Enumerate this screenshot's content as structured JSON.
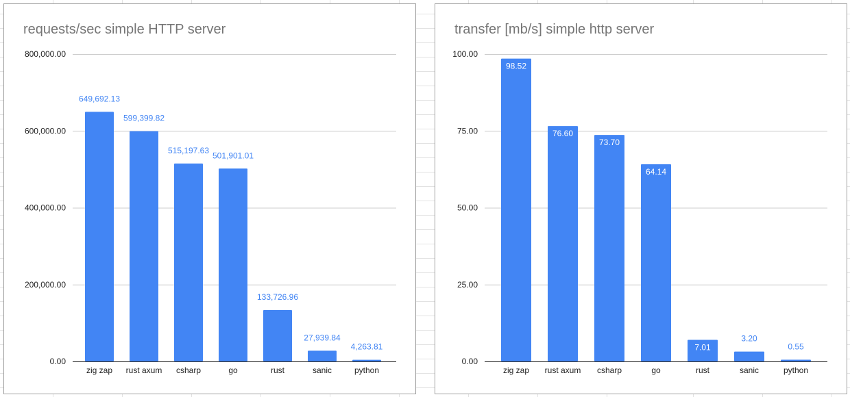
{
  "chart_data": [
    {
      "type": "bar",
      "title": "requests/sec simple HTTP server",
      "categories": [
        "zig zap",
        "rust axum",
        "csharp",
        "go",
        "rust",
        "sanic",
        "python"
      ],
      "values": [
        649692.13,
        599399.82,
        515197.63,
        501901.01,
        133726.96,
        27939.84,
        4263.81
      ],
      "value_labels": [
        "649,692.13",
        "599,399.82",
        "515,197.63",
        "501,901.01",
        "133,726.96",
        "27,939.84",
        "4,263.81"
      ],
      "yticks": [
        "0.00",
        "200,000.00",
        "400,000.00",
        "600,000.00",
        "800,000.00"
      ],
      "ylim": [
        0,
        800000
      ],
      "grid": true,
      "label_position": "above",
      "bar_color": "#4285f4"
    },
    {
      "type": "bar",
      "title": "transfer [mb/s] simple http server",
      "categories": [
        "zig zap",
        "rust axum",
        "csharp",
        "go",
        "rust",
        "sanic",
        "python"
      ],
      "values": [
        98.52,
        76.6,
        73.7,
        64.14,
        7.01,
        3.2,
        0.55
      ],
      "value_labels": [
        "98.52",
        "76.60",
        "73.70",
        "64.14",
        "7.01",
        "3.20",
        "0.55"
      ],
      "yticks": [
        "0.00",
        "25.00",
        "50.00",
        "75.00",
        "100.00"
      ],
      "ylim": [
        0,
        100
      ],
      "grid": true,
      "label_position": "inside",
      "bar_color": "#4285f4"
    }
  ]
}
